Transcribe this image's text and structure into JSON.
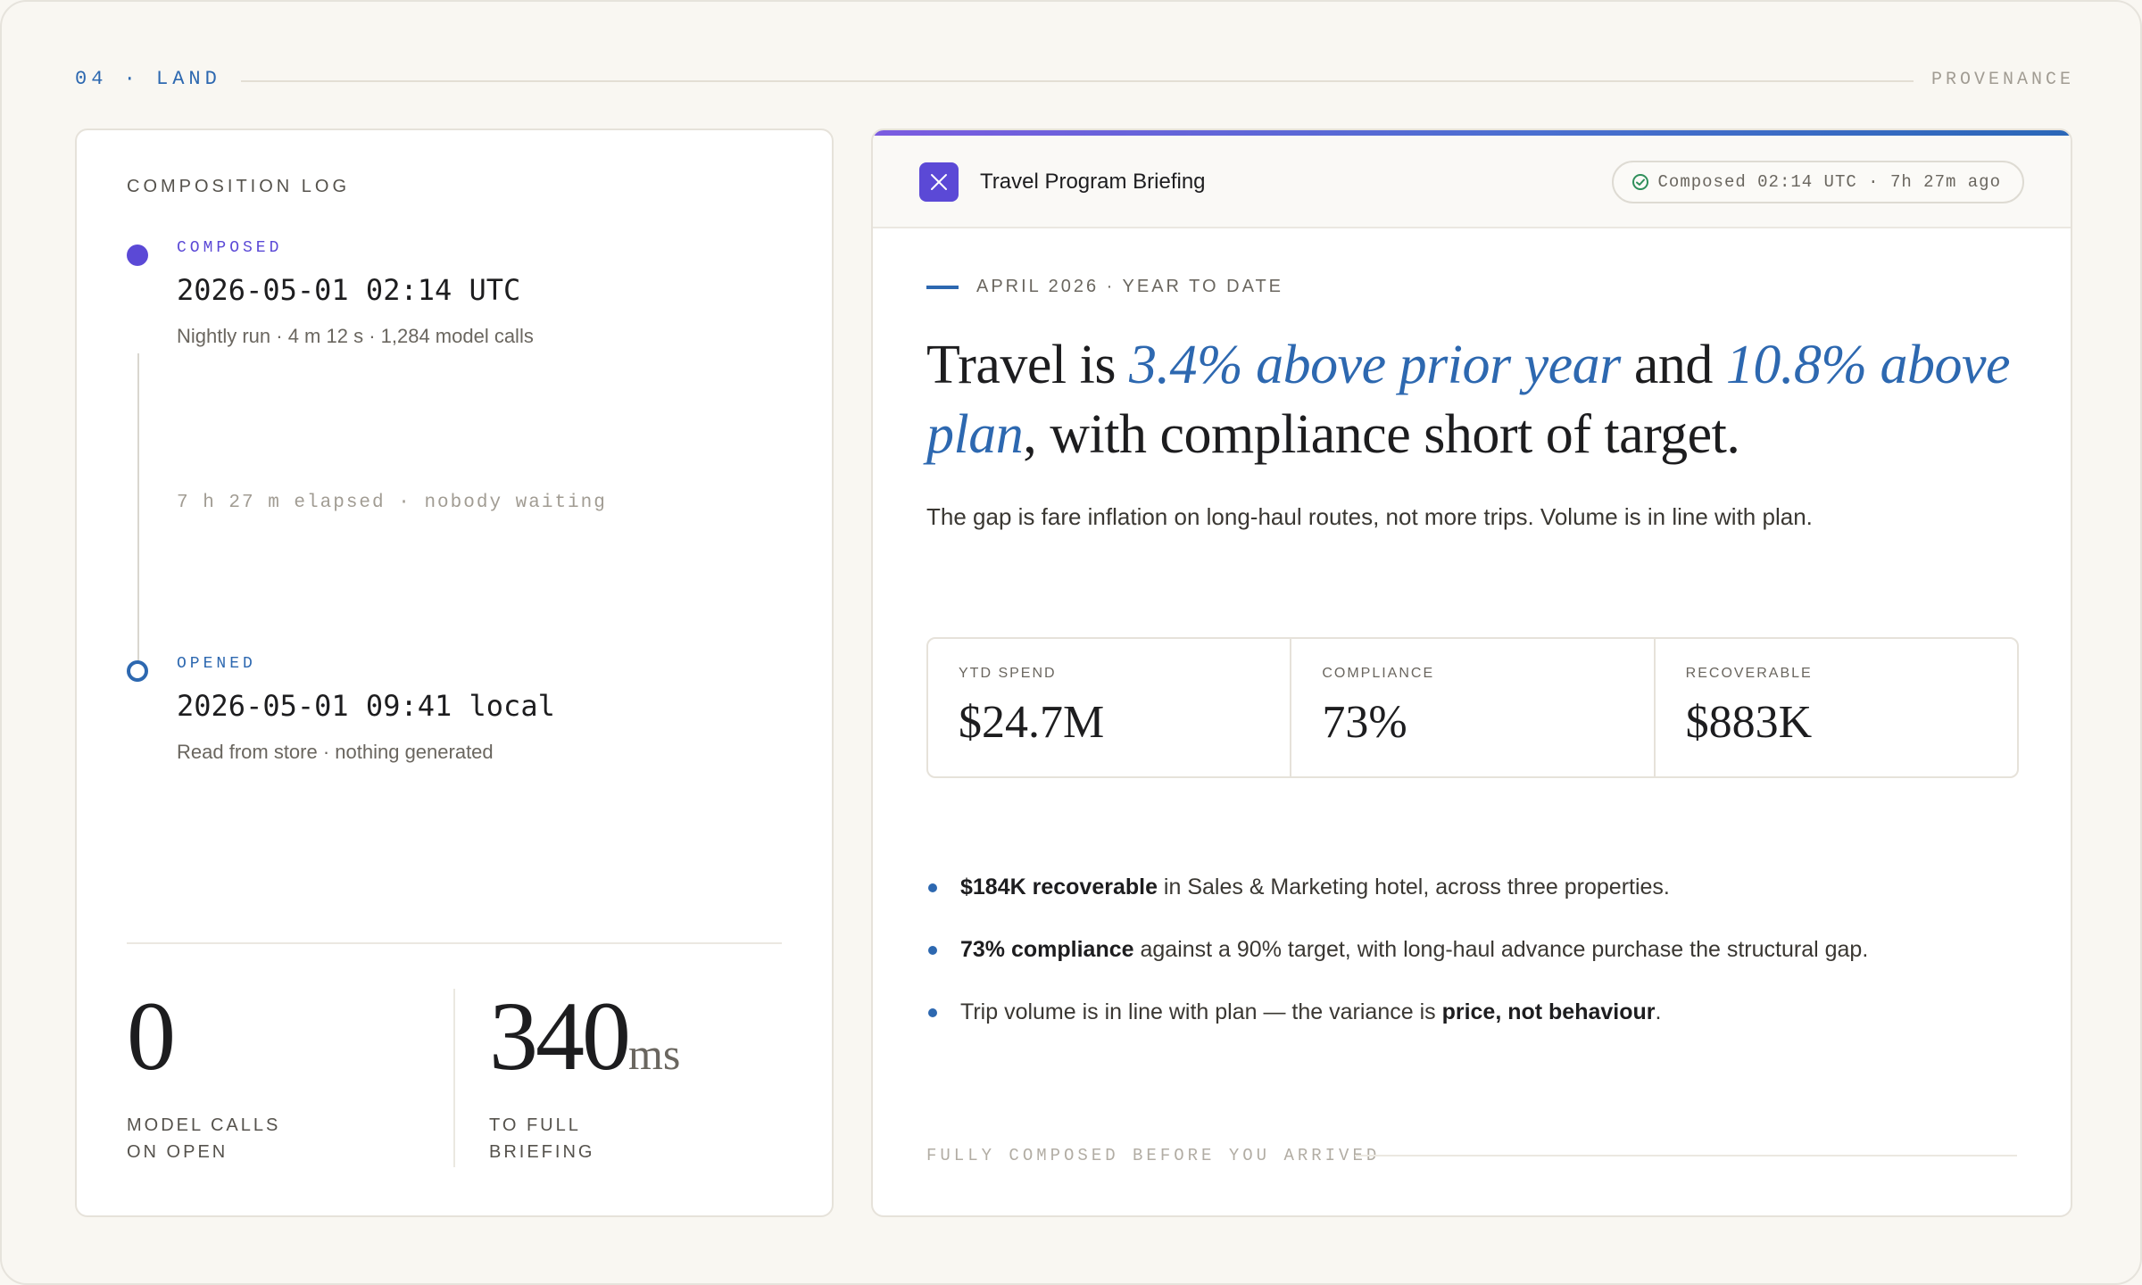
{
  "topbar": {
    "section_tag": "04 · LAND",
    "provenance": "PROVENANCE"
  },
  "log": {
    "title": "COMPOSITION LOG",
    "composed": {
      "label": "COMPOSED",
      "time": "2026-05-01 02:14 UTC",
      "detail": "Nightly run · 4 m 12 s · 1,284 model calls"
    },
    "elapsed": "7 h 27 m elapsed · nobody waiting",
    "opened": {
      "label": "OPENED",
      "time": "2026-05-01 09:41 local",
      "detail": "Read from store · nothing generated"
    },
    "stats": [
      {
        "value": "0",
        "unit": "",
        "caption_line1": "MODEL CALLS",
        "caption_line2": "ON OPEN"
      },
      {
        "value": "340",
        "unit": "ms",
        "caption_line1": "TO FULL",
        "caption_line2": "BRIEFING"
      }
    ]
  },
  "briefing": {
    "title": "Travel Program Briefing",
    "status": "Composed 02:14 UTC · 7h 27m ago",
    "kicker": "APRIL 2026 · YEAR TO DATE",
    "headline": {
      "p1": "Travel is ",
      "e1": "3.4% above prior year",
      "p2": " and ",
      "e2": "10.8% above plan",
      "p3": ", with compliance short of target."
    },
    "lede": "The gap is fare inflation on long-haul routes, not more trips. Volume is in line with plan.",
    "kpis": [
      {
        "label": "YTD SPEND",
        "value": "$24.7M"
      },
      {
        "label": "COMPLIANCE",
        "value": "73%"
      },
      {
        "label": "RECOVERABLE",
        "value": "$883K"
      }
    ],
    "bullets": [
      {
        "pre": "",
        "strong": "$184K recoverable",
        "post": " in Sales & Marketing hotel, across three properties."
      },
      {
        "pre": "",
        "strong": "73% compliance",
        "post": " against a 90% target, with long-haul advance purchase the structural gap."
      },
      {
        "pre": "Trip volume is in line with plan — the variance is ",
        "strong": "price, not behaviour",
        "post": "."
      }
    ],
    "footer": "FULLY COMPOSED BEFORE YOU ARRIVED"
  },
  "colors": {
    "accent_purple": "#5b49d6",
    "accent_blue": "#2d68b0",
    "status_green": "#2f8f5b"
  },
  "icons": {
    "app": "x-mark-icon",
    "status": "check-circle-icon"
  }
}
